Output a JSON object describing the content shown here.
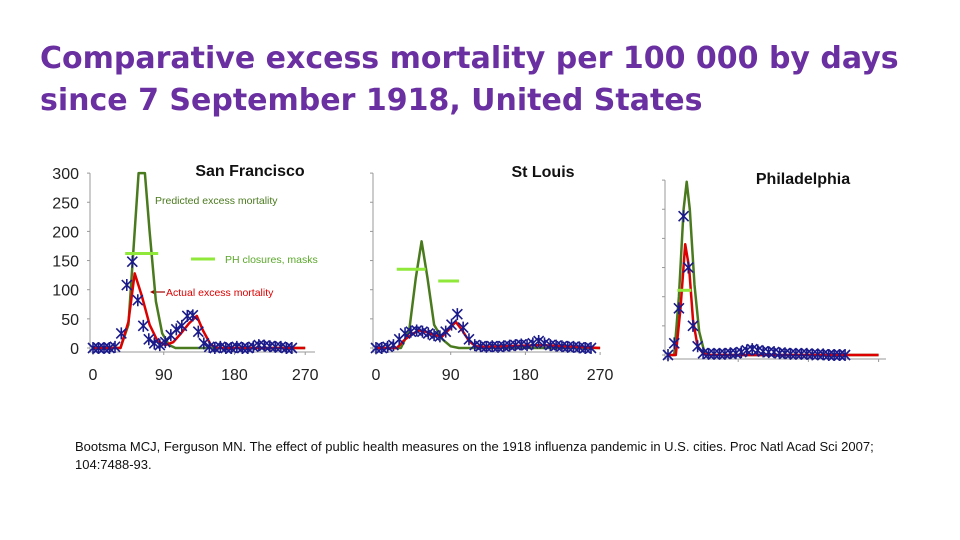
{
  "title": "Comparative excess mortality per 100 000 by days since 7 September 1918, United States",
  "citation": "Bootsma MCJ, Ferguson MN. The effect of public health measures on the 1918 influenza pandemic in U.S. cities. Proc Natl Acad Sci 2007; 104:7488-93.",
  "colors": {
    "predicted": "#4a7a1e",
    "actual": "#dd0000",
    "observed": "#1a1a8a",
    "closures": "#8fe83a",
    "title": "#6a2fa0"
  },
  "annotations": {
    "predicted": "Predicted excess mortality",
    "closures": "PH closures, masks",
    "actual": "Actual excess mortality"
  },
  "chart_data": [
    {
      "type": "line",
      "title": "San Francisco",
      "xticks": [
        "0",
        "90",
        "180",
        "270"
      ],
      "yticks": [
        "0",
        "50",
        "100",
        "150",
        "200",
        "250",
        "300"
      ],
      "xlim": [
        0,
        270
      ],
      "ylim": [
        0,
        300
      ],
      "predicted": [
        [
          0,
          0
        ],
        [
          35,
          0
        ],
        [
          45,
          40
        ],
        [
          52,
          180
        ],
        [
          58,
          300
        ],
        [
          66,
          300
        ],
        [
          72,
          200
        ],
        [
          80,
          80
        ],
        [
          88,
          25
        ],
        [
          97,
          5
        ],
        [
          105,
          0
        ],
        [
          270,
          0
        ]
      ],
      "actual": [
        [
          0,
          0
        ],
        [
          35,
          0
        ],
        [
          45,
          45
        ],
        [
          53,
          128
        ],
        [
          62,
          90
        ],
        [
          72,
          40
        ],
        [
          82,
          12
        ],
        [
          92,
          5
        ],
        [
          102,
          10
        ],
        [
          112,
          25
        ],
        [
          122,
          42
        ],
        [
          132,
          55
        ],
        [
          140,
          30
        ],
        [
          150,
          5
        ],
        [
          160,
          0
        ],
        [
          270,
          0
        ]
      ],
      "observed": [
        [
          0,
          0
        ],
        [
          7,
          0
        ],
        [
          14,
          0
        ],
        [
          21,
          0
        ],
        [
          28,
          2
        ],
        [
          36,
          25
        ],
        [
          43,
          108
        ],
        [
          50,
          148
        ],
        [
          57,
          82
        ],
        [
          64,
          38
        ],
        [
          71,
          15
        ],
        [
          78,
          8
        ],
        [
          85,
          5
        ],
        [
          92,
          10
        ],
        [
          99,
          22
        ],
        [
          106,
          32
        ],
        [
          113,
          38
        ],
        [
          120,
          55
        ],
        [
          127,
          56
        ],
        [
          134,
          28
        ],
        [
          141,
          8
        ],
        [
          148,
          2
        ],
        [
          155,
          0
        ],
        [
          162,
          2
        ],
        [
          169,
          0
        ],
        [
          176,
          0
        ],
        [
          183,
          2
        ],
        [
          190,
          0
        ],
        [
          197,
          0
        ],
        [
          204,
          2
        ],
        [
          211,
          5
        ],
        [
          218,
          4
        ],
        [
          225,
          3
        ],
        [
          232,
          2
        ],
        [
          239,
          2
        ],
        [
          246,
          0
        ],
        [
          253,
          0
        ]
      ],
      "closures": [
        [
          [
            41,
            83
          ],
          162
        ]
      ]
    },
    {
      "type": "line",
      "title": "St Louis",
      "xticks": [
        "0",
        "90",
        "180",
        "270"
      ],
      "xlim": [
        0,
        270
      ],
      "ylim": [
        0,
        300
      ],
      "predicted": [
        [
          0,
          0
        ],
        [
          30,
          0
        ],
        [
          40,
          30
        ],
        [
          48,
          120
        ],
        [
          55,
          183
        ],
        [
          62,
          120
        ],
        [
          70,
          40
        ],
        [
          80,
          15
        ],
        [
          90,
          3
        ],
        [
          100,
          0
        ],
        [
          270,
          0
        ]
      ],
      "actual": [
        [
          0,
          0
        ],
        [
          25,
          0
        ],
        [
          35,
          15
        ],
        [
          45,
          25
        ],
        [
          52,
          30
        ],
        [
          60,
          28
        ],
        [
          70,
          22
        ],
        [
          80,
          20
        ],
        [
          90,
          35
        ],
        [
          96,
          45
        ],
        [
          104,
          30
        ],
        [
          112,
          12
        ],
        [
          120,
          3
        ],
        [
          130,
          2
        ],
        [
          200,
          5
        ],
        [
          270,
          0
        ]
      ],
      "observed": [
        [
          0,
          0
        ],
        [
          7,
          0
        ],
        [
          14,
          2
        ],
        [
          21,
          5
        ],
        [
          28,
          15
        ],
        [
          35,
          25
        ],
        [
          42,
          28
        ],
        [
          49,
          30
        ],
        [
          56,
          28
        ],
        [
          63,
          25
        ],
        [
          70,
          22
        ],
        [
          77,
          20
        ],
        [
          84,
          28
        ],
        [
          91,
          40
        ],
        [
          98,
          58
        ],
        [
          105,
          35
        ],
        [
          112,
          15
        ],
        [
          119,
          5
        ],
        [
          126,
          3
        ],
        [
          133,
          2
        ],
        [
          140,
          3
        ],
        [
          147,
          2
        ],
        [
          154,
          3
        ],
        [
          161,
          4
        ],
        [
          168,
          5
        ],
        [
          175,
          6
        ],
        [
          182,
          5
        ],
        [
          189,
          8
        ],
        [
          196,
          12
        ],
        [
          203,
          8
        ],
        [
          210,
          5
        ],
        [
          217,
          4
        ],
        [
          224,
          3
        ],
        [
          231,
          2
        ],
        [
          238,
          2
        ],
        [
          245,
          1
        ],
        [
          252,
          0
        ],
        [
          259,
          0
        ]
      ],
      "closures": [
        [
          [
            25,
            60
          ],
          135
        ],
        [
          [
            75,
            100
          ],
          115
        ]
      ]
    },
    {
      "type": "line",
      "title": "Philadelphia",
      "xlim": [
        0,
        270
      ],
      "ylim": [
        0,
        300
      ],
      "predicted": [
        [
          0,
          0
        ],
        [
          8,
          0
        ],
        [
          14,
          100
        ],
        [
          20,
          250
        ],
        [
          24,
          297
        ],
        [
          28,
          250
        ],
        [
          34,
          120
        ],
        [
          40,
          40
        ],
        [
          46,
          8
        ],
        [
          52,
          0
        ],
        [
          270,
          0
        ]
      ],
      "actual": [
        [
          0,
          0
        ],
        [
          10,
          0
        ],
        [
          16,
          80
        ],
        [
          22,
          190
        ],
        [
          27,
          150
        ],
        [
          32,
          60
        ],
        [
          38,
          15
        ],
        [
          45,
          3
        ],
        [
          52,
          0
        ],
        [
          270,
          0
        ]
      ],
      "observed": [
        [
          0,
          0
        ],
        [
          8,
          20
        ],
        [
          14,
          80
        ],
        [
          20,
          238
        ],
        [
          26,
          150
        ],
        [
          32,
          50
        ],
        [
          38,
          15
        ],
        [
          45,
          3
        ],
        [
          52,
          2
        ],
        [
          59,
          2
        ],
        [
          66,
          2
        ],
        [
          73,
          2
        ],
        [
          80,
          3
        ],
        [
          87,
          3
        ],
        [
          94,
          5
        ],
        [
          101,
          8
        ],
        [
          108,
          10
        ],
        [
          115,
          8
        ],
        [
          122,
          6
        ],
        [
          129,
          5
        ],
        [
          136,
          5
        ],
        [
          143,
          3
        ],
        [
          150,
          3
        ],
        [
          157,
          2
        ],
        [
          164,
          2
        ],
        [
          171,
          2
        ],
        [
          178,
          2
        ],
        [
          185,
          1
        ],
        [
          192,
          1
        ],
        [
          199,
          1
        ],
        [
          206,
          0
        ],
        [
          213,
          0
        ],
        [
          220,
          0
        ],
        [
          227,
          0
        ]
      ],
      "closures": [
        [
          [
            12,
            30
          ],
          111
        ]
      ]
    }
  ]
}
